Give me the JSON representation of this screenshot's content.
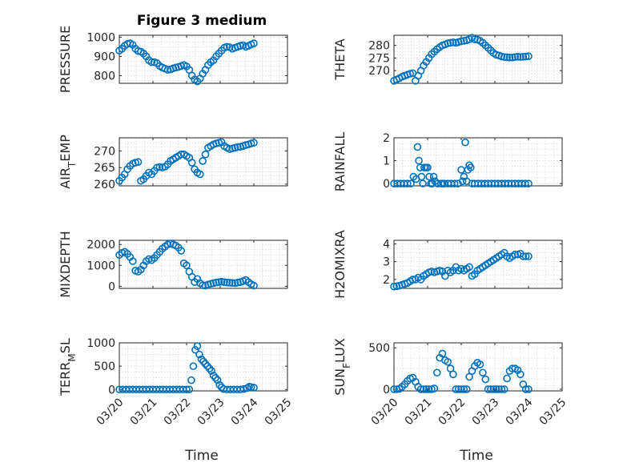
{
  "title": "Figure 3 medium",
  "colors": {
    "marker": "#0072BD",
    "axis": "#262626",
    "grid": "#dcdcdc"
  },
  "x_ticks": [
    "03/20",
    "03/21",
    "03/22",
    "03/23",
    "03/24",
    "03/25"
  ],
  "x_label": "Time",
  "chart_data": [
    {
      "type": "scatter",
      "ylabel": "PRESSURE",
      "ylim": [
        760,
        1010
      ],
      "yticks": [
        800,
        900,
        1000
      ],
      "grid": true,
      "x": [
        0,
        0.08,
        0.16,
        0.24,
        0.32,
        0.4,
        0.48,
        0.56,
        0.64,
        0.72,
        0.8,
        0.88,
        0.96,
        1.04,
        1.12,
        1.2,
        1.28,
        1.36,
        1.44,
        1.52,
        1.6,
        1.68,
        1.76,
        1.84,
        1.92,
        2.0,
        2.08,
        2.16,
        2.24,
        2.32,
        2.4,
        2.48,
        2.56,
        2.64,
        2.72,
        2.8,
        2.88,
        2.96,
        3.04,
        3.12,
        3.2,
        3.28,
        3.36,
        3.44,
        3.52,
        3.6,
        3.68,
        3.76,
        3.84,
        3.92,
        4.0
      ],
      "y": [
        930,
        940,
        955,
        965,
        968,
        960,
        940,
        928,
        925,
        915,
        900,
        880,
        870,
        870,
        865,
        850,
        842,
        836,
        830,
        832,
        838,
        842,
        845,
        850,
        855,
        848,
        830,
        800,
        780,
        770,
        785,
        810,
        830,
        855,
        870,
        880,
        900,
        915,
        930,
        945,
        950,
        948,
        940,
        945,
        950,
        955,
        958,
        950,
        955,
        962,
        968
      ]
    },
    {
      "type": "scatter",
      "ylabel": "THETA",
      "ylim": [
        265,
        284
      ],
      "yticks": [
        270,
        275,
        280
      ],
      "grid": true,
      "x": [
        0,
        0.08,
        0.16,
        0.24,
        0.32,
        0.4,
        0.48,
        0.56,
        0.64,
        0.72,
        0.8,
        0.88,
        0.96,
        1.04,
        1.12,
        1.2,
        1.28,
        1.36,
        1.44,
        1.52,
        1.6,
        1.68,
        1.76,
        1.84,
        1.92,
        2.0,
        2.08,
        2.16,
        2.24,
        2.32,
        2.4,
        2.48,
        2.56,
        2.64,
        2.72,
        2.8,
        2.88,
        2.96,
        3.04,
        3.12,
        3.2,
        3.28,
        3.36,
        3.44,
        3.52,
        3.6,
        3.68,
        3.76,
        3.84,
        3.92,
        4.0
      ],
      "y": [
        266,
        266.5,
        267,
        267.6,
        268,
        268.4,
        268.8,
        269,
        266,
        268,
        270,
        272,
        273.5,
        275,
        276.5,
        277.5,
        278.5,
        279.3,
        280,
        280.4,
        280.8,
        281,
        281.2,
        281,
        281.3,
        281.6,
        281.8,
        282,
        282.4,
        283,
        282.4,
        282.3,
        281.8,
        281,
        280,
        279,
        278,
        277,
        276.3,
        276,
        275.6,
        275.4,
        275.3,
        275.2,
        275.2,
        275.4,
        275.5,
        275.4,
        275.5,
        275.6,
        275.7
      ]
    },
    {
      "type": "scatter",
      "ylabel": "AIR_TEMP",
      "ylim": [
        259.5,
        274
      ],
      "yticks": [
        260,
        265,
        270
      ],
      "grid": true,
      "x": [
        0,
        0.08,
        0.16,
        0.24,
        0.32,
        0.4,
        0.48,
        0.56,
        0.64,
        0.72,
        0.8,
        0.88,
        0.96,
        1.04,
        1.12,
        1.2,
        1.28,
        1.36,
        1.44,
        1.52,
        1.6,
        1.68,
        1.76,
        1.84,
        1.92,
        2.0,
        2.08,
        2.16,
        2.24,
        2.32,
        2.4,
        2.48,
        2.56,
        2.64,
        2.72,
        2.8,
        2.88,
        2.96,
        3.04,
        3.12,
        3.2,
        3.28,
        3.36,
        3.44,
        3.52,
        3.6,
        3.68,
        3.76,
        3.84,
        3.92,
        4.0
      ],
      "y": [
        261,
        262,
        263,
        264.5,
        265.5,
        266.2,
        266.5,
        266.7,
        261,
        261.5,
        262.5,
        263.5,
        263,
        264,
        265,
        265.2,
        265,
        265.3,
        266,
        267,
        267.5,
        268,
        268.5,
        269,
        269,
        268.5,
        268,
        266.5,
        264.5,
        263.5,
        263,
        267,
        269,
        271,
        271.5,
        272,
        272.3,
        272.5,
        272.7,
        271.5,
        271,
        270.6,
        270.8,
        271,
        271.2,
        271.3,
        271.5,
        271.8,
        272,
        272.3,
        272.5
      ]
    },
    {
      "type": "scatter",
      "ylabel": "RAINFALL",
      "ylim": [
        -0.1,
        2
      ],
      "yticks": [
        0,
        1,
        2
      ],
      "grid": true,
      "x": [
        0,
        0.1,
        0.2,
        0.3,
        0.4,
        0.5,
        0.58,
        0.66,
        0.7,
        0.74,
        0.78,
        0.82,
        0.86,
        0.9,
        0.95,
        1.0,
        1.05,
        1.1,
        1.14,
        1.18,
        1.22,
        1.3,
        1.4,
        1.45,
        1.5,
        1.6,
        1.7,
        1.8,
        1.9,
        2.0,
        2.04,
        2.08,
        2.12,
        2.16,
        2.2,
        2.24,
        2.28,
        2.32,
        2.4,
        2.5,
        2.6,
        2.7,
        2.8,
        2.9,
        3.0,
        3.1,
        3.2,
        3.3,
        3.4,
        3.5,
        3.6,
        3.7,
        3.8,
        3.9,
        4.0
      ],
      "y": [
        0,
        0,
        0,
        0,
        0,
        0,
        0.3,
        0.2,
        1.6,
        1.0,
        0.7,
        0.3,
        0,
        0.7,
        0.7,
        0.7,
        0.3,
        0,
        0,
        0.3,
        0.1,
        0,
        0,
        0,
        0,
        0,
        0,
        0,
        0,
        0.6,
        0.1,
        0.3,
        1.8,
        0.1,
        0.6,
        0.8,
        0.7,
        0,
        0,
        0,
        0,
        0,
        0,
        0,
        0,
        0,
        0,
        0,
        0,
        0,
        0,
        0,
        0,
        0,
        0
      ]
    },
    {
      "type": "scatter",
      "ylabel": "MIXDEPTH",
      "ylim": [
        -100,
        2200
      ],
      "yticks": [
        0,
        1000,
        2000
      ],
      "grid": true,
      "x": [
        0,
        0.08,
        0.16,
        0.24,
        0.32,
        0.4,
        0.48,
        0.56,
        0.64,
        0.72,
        0.8,
        0.88,
        0.96,
        1.04,
        1.12,
        1.2,
        1.28,
        1.36,
        1.44,
        1.52,
        1.6,
        1.68,
        1.76,
        1.84,
        1.92,
        2.0,
        2.08,
        2.16,
        2.24,
        2.32,
        2.4,
        2.48,
        2.56,
        2.64,
        2.72,
        2.8,
        2.88,
        2.96,
        3.04,
        3.12,
        3.2,
        3.28,
        3.36,
        3.44,
        3.52,
        3.6,
        3.68,
        3.76,
        3.84,
        3.92,
        4.0
      ],
      "y": [
        1500,
        1600,
        1650,
        1550,
        1400,
        1200,
        750,
        700,
        800,
        1000,
        1200,
        1300,
        1250,
        1350,
        1500,
        1650,
        1800,
        1900,
        2000,
        2050,
        2000,
        1950,
        1850,
        1700,
        1100,
        1000,
        700,
        450,
        200,
        350,
        150,
        50,
        30,
        80,
        120,
        150,
        180,
        200,
        220,
        200,
        180,
        170,
        160,
        150,
        180,
        200,
        250,
        300,
        200,
        100,
        30
      ]
    },
    {
      "type": "scatter",
      "ylabel": "H2OMIXRA",
      "ylim": [
        1.5,
        4.2
      ],
      "yticks": [
        2,
        3,
        4
      ],
      "grid": true,
      "x": [
        0,
        0.08,
        0.16,
        0.24,
        0.32,
        0.4,
        0.48,
        0.56,
        0.64,
        0.72,
        0.8,
        0.88,
        0.96,
        1.04,
        1.12,
        1.2,
        1.28,
        1.36,
        1.44,
        1.52,
        1.6,
        1.68,
        1.76,
        1.84,
        1.92,
        2.0,
        2.08,
        2.16,
        2.24,
        2.32,
        2.4,
        2.48,
        2.56,
        2.64,
        2.72,
        2.8,
        2.88,
        2.96,
        3.04,
        3.12,
        3.2,
        3.28,
        3.36,
        3.44,
        3.52,
        3.6,
        3.68,
        3.76,
        3.84,
        3.92,
        4.0
      ],
      "y": [
        1.6,
        1.62,
        1.65,
        1.7,
        1.75,
        1.8,
        1.9,
        2.0,
        2.0,
        2.1,
        2.0,
        2.2,
        2.3,
        2.4,
        2.45,
        2.4,
        2.45,
        2.5,
        2.45,
        2.2,
        2.5,
        2.4,
        2.5,
        2.7,
        2.5,
        2.6,
        2.5,
        2.6,
        2.7,
        2.2,
        2.3,
        2.5,
        2.6,
        2.7,
        2.8,
        2.9,
        3.0,
        3.1,
        3.2,
        3.3,
        3.4,
        3.5,
        3.3,
        3.2,
        3.3,
        3.4,
        3.4,
        3.45,
        3.3,
        3.3,
        3.3
      ]
    },
    {
      "type": "scatter",
      "ylabel": "TERR_MSL",
      "ylim": [
        -30,
        1000
      ],
      "yticks": [
        0,
        500,
        1000
      ],
      "grid": true,
      "x": [
        0,
        0.1,
        0.2,
        0.3,
        0.4,
        0.5,
        0.6,
        0.7,
        0.8,
        0.9,
        1.0,
        1.1,
        1.2,
        1.3,
        1.4,
        1.5,
        1.6,
        1.7,
        1.8,
        1.9,
        2.0,
        2.08,
        2.14,
        2.2,
        2.26,
        2.32,
        2.38,
        2.44,
        2.5,
        2.56,
        2.62,
        2.68,
        2.74,
        2.8,
        2.86,
        2.92,
        2.98,
        3.04,
        3.1,
        3.2,
        3.3,
        3.4,
        3.5,
        3.6,
        3.7,
        3.8,
        3.86,
        3.92,
        4.0
      ],
      "y": [
        0,
        0,
        0,
        0,
        0,
        0,
        0,
        0,
        0,
        0,
        0,
        0,
        0,
        0,
        0,
        0,
        0,
        0,
        0,
        0,
        0,
        0,
        200,
        500,
        850,
        930,
        750,
        650,
        600,
        550,
        500,
        450,
        400,
        300,
        250,
        200,
        100,
        50,
        10,
        0,
        0,
        0,
        0,
        0,
        10,
        30,
        60,
        50,
        40
      ]
    },
    {
      "type": "scatter",
      "ylabel": "SUN_FLUX",
      "ylim": [
        -20,
        560
      ],
      "yticks": [
        0,
        500
      ],
      "grid": true,
      "x": [
        0,
        0.08,
        0.16,
        0.24,
        0.32,
        0.4,
        0.48,
        0.56,
        0.64,
        0.72,
        0.8,
        0.88,
        0.96,
        1.04,
        1.12,
        1.2,
        1.28,
        1.36,
        1.44,
        1.52,
        1.6,
        1.68,
        1.76,
        1.84,
        1.92,
        2.0,
        2.08,
        2.16,
        2.24,
        2.32,
        2.4,
        2.48,
        2.56,
        2.64,
        2.72,
        2.8,
        2.88,
        2.96,
        3.04,
        3.12,
        3.2,
        3.28,
        3.36,
        3.44,
        3.52,
        3.6,
        3.68,
        3.76,
        3.84,
        3.92,
        4.0
      ],
      "y": [
        0,
        0,
        5,
        30,
        60,
        100,
        130,
        140,
        90,
        30,
        0,
        0,
        0,
        0,
        0,
        10,
        200,
        380,
        430,
        350,
        330,
        250,
        180,
        0,
        0,
        0,
        0,
        0,
        150,
        220,
        280,
        320,
        300,
        200,
        120,
        0,
        0,
        0,
        0,
        0,
        0,
        0,
        130,
        220,
        250,
        250,
        230,
        180,
        60,
        0,
        0
      ]
    }
  ]
}
